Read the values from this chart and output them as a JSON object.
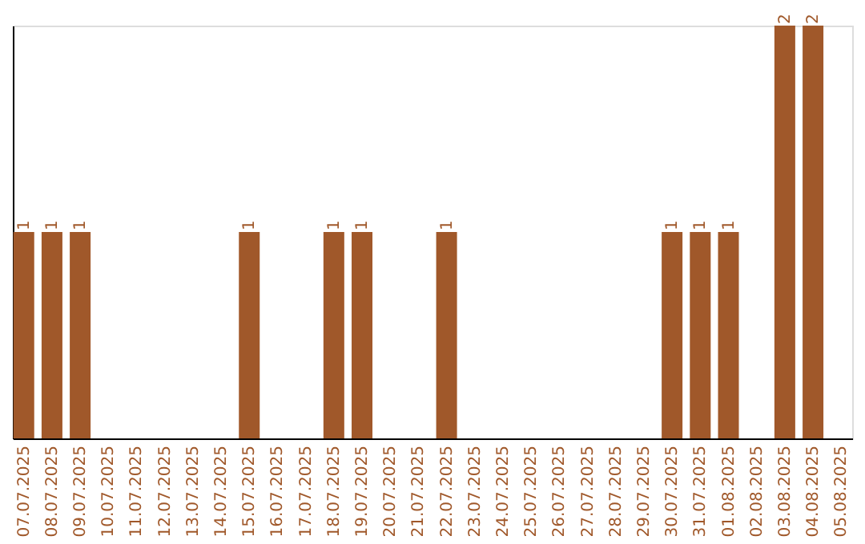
{
  "chart_data": {
    "type": "bar",
    "categories": [
      "07.07.2025",
      "08.07.2025",
      "09.07.2025",
      "10.07.2025",
      "11.07.2025",
      "12.07.2025",
      "13.07.2025",
      "14.07.2025",
      "15.07.2025",
      "16.07.2025",
      "17.07.2025",
      "18.07.2025",
      "19.07.2025",
      "20.07.2025",
      "21.07.2025",
      "22.07.2025",
      "23.07.2025",
      "24.07.2025",
      "25.07.2025",
      "26.07.2025",
      "27.07.2025",
      "28.07.2025",
      "29.07.2025",
      "30.07.2025",
      "31.07.2025",
      "01.08.2025",
      "02.08.2025",
      "03.08.2025",
      "04.08.2025",
      "05.08.2025"
    ],
    "values": [
      1,
      1,
      1,
      0,
      0,
      0,
      0,
      0,
      1,
      0,
      0,
      1,
      1,
      0,
      0,
      1,
      0,
      0,
      0,
      0,
      0,
      0,
      0,
      1,
      1,
      1,
      0,
      2,
      2,
      0
    ],
    "value_labels": [
      "1",
      "1",
      "1",
      null,
      null,
      null,
      null,
      null,
      "1",
      null,
      null,
      "1",
      "1",
      null,
      null,
      "1",
      null,
      null,
      null,
      null,
      null,
      null,
      null,
      "1",
      "1",
      "1",
      null,
      "2",
      "2",
      null
    ],
    "color": "#a0582a",
    "grid": false
  }
}
